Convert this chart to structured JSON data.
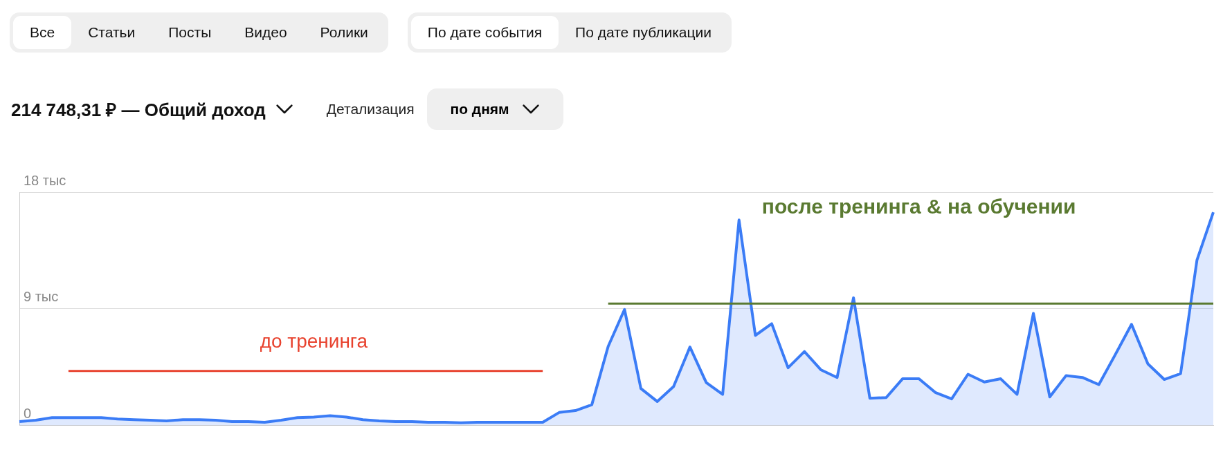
{
  "chart_data": {
    "type": "area",
    "title": "214 748,31 ₽ — Общий доход",
    "annotations": [
      "Все",
      "Статьи",
      "Посты",
      "Видео",
      "Ролики",
      "По дате события",
      "По дате публикации",
      "Детализация",
      "по дням"
    ],
    "categories": [
      null,
      null,
      null,
      null,
      null,
      null,
      null,
      null,
      null,
      null,
      null,
      null,
      null,
      null,
      null,
      null,
      null,
      null,
      null,
      null,
      null,
      null,
      null,
      null,
      null,
      null,
      null,
      null,
      null,
      null,
      null,
      null,
      null,
      null,
      null,
      null,
      null,
      null,
      null,
      null,
      null,
      null,
      null,
      null,
      null,
      null,
      null,
      null,
      null,
      null,
      null,
      null,
      null,
      null,
      null,
      null,
      null,
      null,
      null,
      null,
      null,
      null,
      null,
      null,
      null,
      null,
      null,
      null,
      null,
      null,
      null,
      null,
      null,
      null
    ],
    "series": [
      {
        "color": "#3b7cf6",
        "values": [
          0.3,
          0.4,
          0.6,
          0.6,
          0.6,
          0.6,
          0.5,
          0.45,
          0.4,
          0.35,
          0.45,
          0.45,
          0.4,
          0.3,
          0.3,
          0.25,
          0.4,
          0.6,
          0.65,
          0.75,
          0.65,
          0.45,
          0.35,
          0.3,
          0.3,
          0.25,
          0.25,
          0.2,
          0.25,
          0.25,
          0.25,
          0.25,
          0.25,
          1.0,
          1.15,
          1.6,
          6.1,
          8.95,
          2.85,
          1.85,
          3.0,
          6.05,
          3.3,
          2.4,
          15.85,
          6.95,
          7.85,
          4.45,
          5.7,
          4.3,
          3.7,
          9.85,
          2.1,
          2.15,
          3.6,
          3.6,
          2.55,
          2.05,
          3.95,
          3.35,
          3.6,
          2.4,
          8.65,
          2.2,
          3.85,
          3.7,
          3.15,
          5.45,
          7.8,
          4.75,
          3.55,
          4.0,
          12.75,
          16.45
        ]
      },
      {
        "type": "line",
        "name": "до тренинга",
        "color": "#e8432f",
        "values": [
          null,
          null,
          null,
          4.2,
          4.2,
          4.2,
          4.2,
          4.2,
          4.2,
          4.2,
          4.2,
          4.2,
          4.2,
          4.2,
          4.2,
          4.2,
          4.2,
          4.2,
          4.2,
          4.2,
          4.2,
          4.2,
          4.2,
          4.2,
          4.2,
          4.2,
          4.2,
          4.2,
          4.2,
          4.2,
          4.2,
          4.2,
          4.2,
          null,
          null,
          null,
          null,
          null,
          null,
          null,
          null,
          null,
          null,
          null,
          null,
          null,
          null,
          null,
          null,
          null,
          null,
          null,
          null,
          null,
          null,
          null,
          null,
          null,
          null,
          null,
          null,
          null,
          null,
          null,
          null,
          null,
          null,
          null,
          null,
          null,
          null,
          null,
          null,
          null
        ]
      },
      {
        "type": "line",
        "name": "после тренинга & на обучении",
        "color": "#5a7a31",
        "values": [
          null,
          null,
          null,
          null,
          null,
          null,
          null,
          null,
          null,
          null,
          null,
          null,
          null,
          null,
          null,
          null,
          null,
          null,
          null,
          null,
          null,
          null,
          null,
          null,
          null,
          null,
          null,
          null,
          null,
          null,
          null,
          null,
          null,
          null,
          null,
          null,
          9.4,
          9.4,
          9.4,
          9.4,
          9.4,
          9.4,
          9.4,
          9.4,
          9.4,
          9.4,
          9.4,
          9.4,
          9.4,
          9.4,
          9.4,
          9.4,
          9.4,
          9.4,
          9.4,
          9.4,
          9.4,
          9.4,
          9.4,
          9.4,
          9.4,
          9.4,
          9.4,
          9.4,
          9.4,
          9.4,
          9.4,
          9.4,
          9.4,
          9.4,
          9.4,
          9.4,
          9.4,
          9.4
        ]
      }
    ],
    "ylim": [
      0,
      18
    ],
    "yticks": [
      {
        "value": 0,
        "label": "0"
      },
      {
        "value": 9,
        "label": "9 тыс"
      },
      {
        "value": 18,
        "label": "18 тыс"
      }
    ],
    "grid": "y",
    "legend": false,
    "marker": "none",
    "line_style": "solid"
  }
}
